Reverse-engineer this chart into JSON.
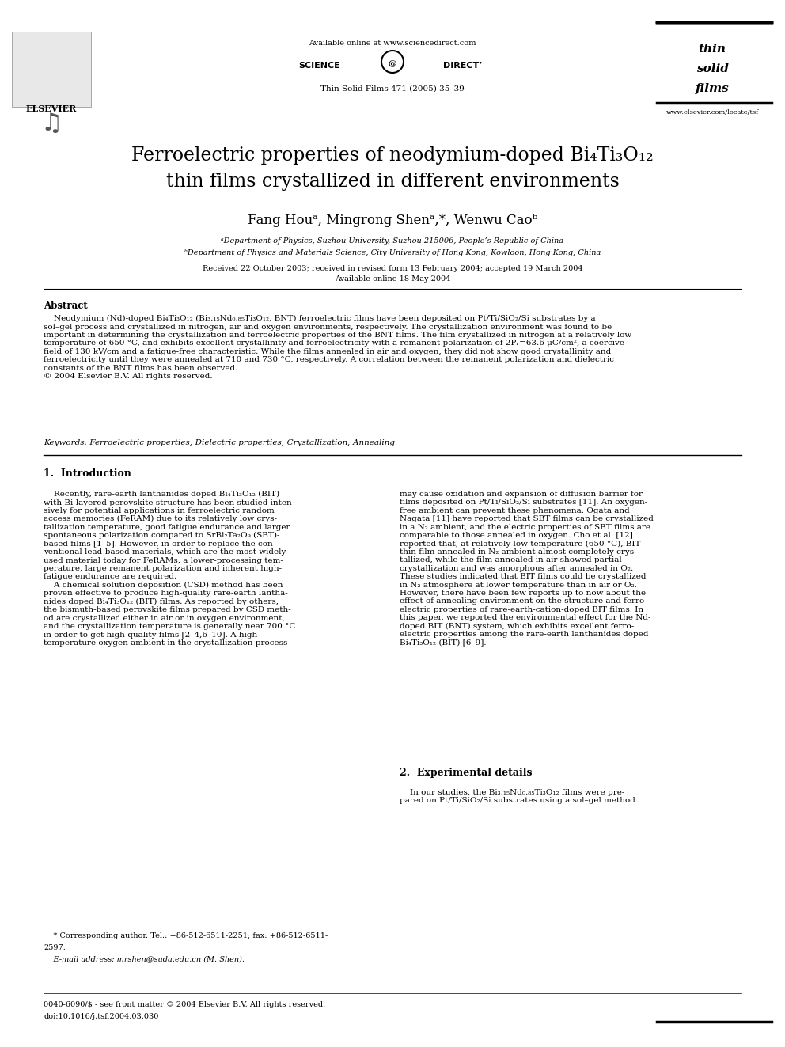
{
  "bg_color": "#ffffff",
  "page_width": 9.92,
  "page_height": 13.23,
  "header_available_online": "Available online at www.sciencedirect.com",
  "header_journal": "Thin Solid Films 471 (2005) 35–39",
  "header_url": "www.elsevier.com/locate/tsf",
  "title_line1": "Ferroelectric properties of neodymium-doped Bi₄Ti₃O₁₂",
  "title_line2": "thin films crystallized in different environments",
  "affil_a": "ᵃDepartment of Physics, Suzhou University, Suzhou 215006, People’s Republic of China",
  "affil_b": "ᵇDepartment of Physics and Materials Science, City University of Hong Kong, Kowloon, Hong Kong, China",
  "received_line": "Received 22 October 2003; received in revised form 13 February 2004; accepted 19 March 2004",
  "available_online_date": "Available online 18 May 2004",
  "abstract_title": "Abstract",
  "keywords_line": "Keywords: Ferroelectric properties; Dielectric properties; Crystallization; Annealing",
  "section1_title": "1.  Introduction",
  "section2_title": "2.  Experimental details",
  "footnote_star": "    * Corresponding author. Tel.: +86-512-6511-2251; fax: +86-512-6511-",
  "footnote_star2": "2597.",
  "footnote_email": "    E-mail address: mrshen@suda.edu.cn (M. Shen).",
  "footer_issn": "0040-6090/$ - see front matter © 2004 Elsevier B.V. All rights reserved.",
  "footer_doi": "doi:10.1016/j.tsf.2004.03.030"
}
